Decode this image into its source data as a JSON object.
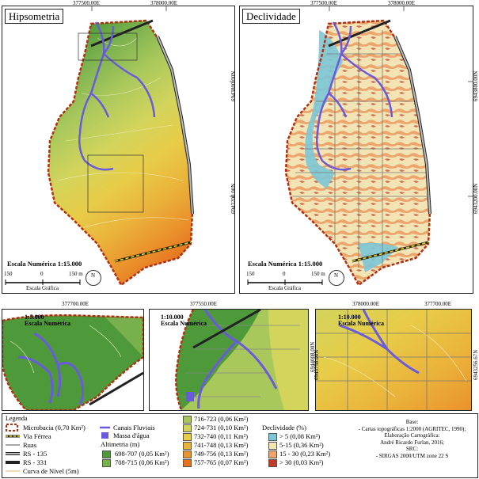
{
  "maps": {
    "hypsometry": {
      "title": "Hipsometria",
      "x_labels": [
        "377500.00E",
        "378000.00E"
      ],
      "y_labels": [
        "6943800.00N",
        "6943200.00N"
      ],
      "scale_title": "Escala Numérica 1:15.000",
      "scale_ticks": [
        "150",
        "0",
        "150 m"
      ],
      "scale_caption": "Escala Gráfica",
      "north": "N"
    },
    "slope": {
      "title": "Declividade",
      "x_labels": [
        "377500.00E",
        "378000.00E"
      ],
      "y_labels": [
        "6943800.00N",
        "6943200.00N"
      ],
      "scale_title": "Escala Numérica 1:15.000",
      "scale_ticks": [
        "150",
        "0",
        "150 m"
      ],
      "scale_caption": "Escala Gráfica",
      "north": "N"
    }
  },
  "insets": [
    {
      "scale": "1:5.000",
      "caption": "Escala Numérica",
      "x_label": "377700.00E",
      "y_label": ""
    },
    {
      "scale": "1:10.000",
      "caption": "Escala Numérica",
      "x_label": "377550.00E",
      "y_label": "6944008.00N"
    },
    {
      "scale": "1:10.000",
      "caption": "Escala Numérica",
      "x_label": "378000.00E",
      "y_label": "6943758.00N"
    },
    {
      "scale": "",
      "caption": "",
      "x_label": "377700.00E",
      "y_label": "6943256.67N"
    }
  ],
  "legend": {
    "title": "Legenda",
    "lines": [
      {
        "label": "Microbacia (0,70 Km²)",
        "icon": "dashed-red-boundary"
      },
      {
        "label": "Via Férrea",
        "icon": "dashed-yellow-line"
      },
      {
        "label": "Ruas",
        "icon": "gray-line"
      },
      {
        "label": "RS - 135",
        "icon": "road-gray"
      },
      {
        "label": "RS - 331",
        "icon": "road-dark"
      },
      {
        "label": "Curva de Nível (5m)",
        "icon": "contour-line"
      }
    ],
    "water": [
      {
        "label": "Canais Fluviais",
        "icon": "blue-line"
      },
      {
        "label": "Massa d'água",
        "icon": "blue-square"
      }
    ],
    "altimetry_title": "Altimetria (m)",
    "altimetry": [
      {
        "label": "698-707 (0,05 Km²)",
        "color": "#4e9a3a"
      },
      {
        "label": "708-715 (0,06 Km²)",
        "color": "#78b04e"
      },
      {
        "label": "716-723 (0,06 Km²)",
        "color": "#a9c85c"
      },
      {
        "label": "724-731 (0,10 Km²)",
        "color": "#d2d45c"
      },
      {
        "label": "732-740 (0,11 Km²)",
        "color": "#e8cc48"
      },
      {
        "label": "741-748 (0,13 Km²)",
        "color": "#eab23a"
      },
      {
        "label": "749-756 (0,13 Km²)",
        "color": "#ea922c"
      },
      {
        "label": "757-765 (0,07 Km²)",
        "color": "#e6701e"
      }
    ],
    "slope_title": "Declividade (%)",
    "slope": [
      {
        "label": "> 5  (0,08 Km²)",
        "color": "#7cc6d6"
      },
      {
        "label": "5-15 (0,36 Km²)",
        "color": "#f2e4b4"
      },
      {
        "label": "15 - 30 (0,23 Km²)",
        "color": "#eda56e"
      },
      {
        "label": "> 30 (0,03 Km²)",
        "color": "#c03a2a"
      }
    ],
    "base_lines": [
      "Base:",
      "- Cartas topográficas 1:2000 (AGRITEC, 1990);",
      "Elaboração Cartográfica:",
      "André Ricardo Furlan, 2016;",
      "SRC:",
      "- SIRGAS 2000/UTM zone 22 S"
    ]
  }
}
